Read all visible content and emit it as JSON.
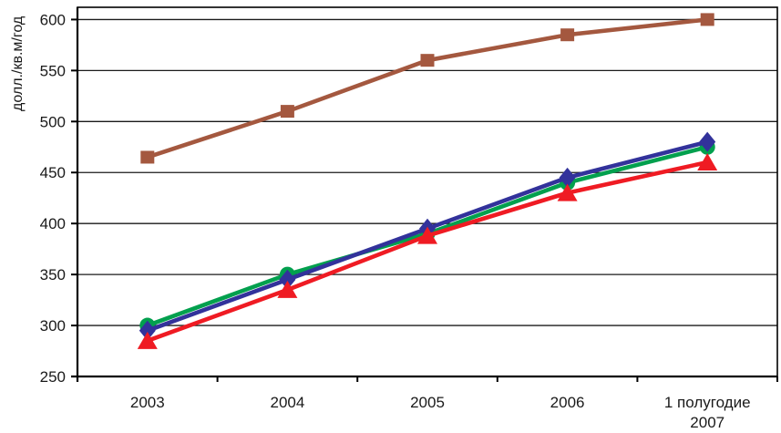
{
  "chart_data": {
    "type": "line",
    "title": "",
    "xlabel": "",
    "ylabel": "долл./кв.м/год",
    "categories": [
      "2003",
      "2004",
      "2005",
      "2006",
      "1 полугодие\n2007"
    ],
    "ylim": [
      250,
      612
    ],
    "yticks": [
      250,
      300,
      350,
      400,
      450,
      500,
      550,
      600
    ],
    "grid": "horizontal",
    "legend": "none",
    "frame_color": "#000000",
    "gridline_color": "#1a1a1a",
    "series": [
      {
        "name": "brown-squares",
        "marker": "square",
        "color": "#A4583F",
        "values": [
          465,
          510,
          560,
          585,
          600
        ]
      },
      {
        "name": "green-circles",
        "marker": "circle",
        "color": "#02A04E",
        "values": [
          300,
          350,
          390,
          440,
          475
        ]
      },
      {
        "name": "blue-diamonds",
        "marker": "diamond",
        "color": "#32329B",
        "values": [
          295,
          345,
          395,
          445,
          480
        ]
      },
      {
        "name": "red-triangles",
        "marker": "triangle",
        "color": "#EF1B23",
        "values": [
          285,
          335,
          388,
          430,
          460
        ]
      }
    ]
  }
}
